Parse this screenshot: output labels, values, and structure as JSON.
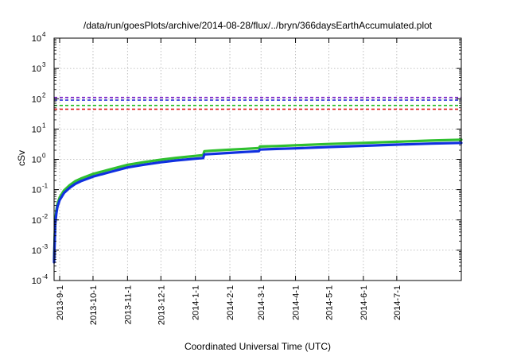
{
  "chart_data": {
    "type": "line",
    "title": "/data/run/goesPlots/archive/2014-08-28/flux/../bryn/366daysEarthAccumulated.plot",
    "xlabel": "Coordinated Universal Time (UTC)",
    "ylabel": "cSv",
    "y_scale": "log",
    "ylim": [
      0.0001,
      10000
    ],
    "xlim": [
      "2013-08-27",
      "2014-08-28"
    ],
    "grid": true,
    "y_ticks": [
      {
        "value": 0.0001,
        "base": "10",
        "exp": "-4"
      },
      {
        "value": 0.001,
        "base": "10",
        "exp": "-3"
      },
      {
        "value": 0.01,
        "base": "10",
        "exp": "-2"
      },
      {
        "value": 0.1,
        "base": "10",
        "exp": "-1"
      },
      {
        "value": 1,
        "base": "10",
        "exp": "0"
      },
      {
        "value": 10,
        "base": "10",
        "exp": "1"
      },
      {
        "value": 100,
        "base": "10",
        "exp": "2"
      },
      {
        "value": 1000,
        "base": "10",
        "exp": "3"
      },
      {
        "value": 10000,
        "base": "10",
        "exp": "4"
      }
    ],
    "x_ticks": [
      {
        "date": "2013-09-01",
        "label": "2013-9-1"
      },
      {
        "date": "2013-10-01",
        "label": "2013-10-1"
      },
      {
        "date": "2013-11-01",
        "label": "2013-11-1"
      },
      {
        "date": "2013-12-01",
        "label": "2013-12-1"
      },
      {
        "date": "2014-01-01",
        "label": "2014-1-1"
      },
      {
        "date": "2014-02-01",
        "label": "2014-2-1"
      },
      {
        "date": "2014-03-01",
        "label": "2014-3-1"
      },
      {
        "date": "2014-04-01",
        "label": "2014-4-1"
      },
      {
        "date": "2014-05-01",
        "label": "2014-5-1"
      },
      {
        "date": "2014-06-01",
        "label": "2014-6-1"
      },
      {
        "date": "2014-07-01",
        "label": "2014-7-1"
      }
    ],
    "reference_lines": [
      {
        "value": 110,
        "color": "#7a20c8"
      },
      {
        "value": 90,
        "color": "#1a1ad6"
      },
      {
        "value": 60,
        "color": "#22bb22"
      },
      {
        "value": 45,
        "color": "#e02020"
      }
    ],
    "series": [
      {
        "color": "#30c030",
        "x": [
          "2013-08-27",
          "2013-08-28",
          "2013-08-29",
          "2013-08-30",
          "2013-09-01",
          "2013-09-05",
          "2013-09-10",
          "2013-09-15",
          "2013-09-20",
          "2013-10-01",
          "2013-10-15",
          "2013-11-01",
          "2013-11-15",
          "2013-12-01",
          "2013-12-15",
          "2014-01-01",
          "2014-01-08",
          "2014-01-09",
          "2014-01-15",
          "2014-02-01",
          "2014-02-15",
          "2014-02-27",
          "2014-02-28",
          "2014-03-15",
          "2014-04-01",
          "2014-05-01",
          "2014-06-01",
          "2014-07-01",
          "2014-08-01",
          "2014-08-28"
        ],
        "values": [
          0.0005,
          0.009,
          0.02,
          0.033,
          0.055,
          0.095,
          0.14,
          0.19,
          0.23,
          0.33,
          0.45,
          0.66,
          0.8,
          0.97,
          1.12,
          1.3,
          1.38,
          1.85,
          1.92,
          2.08,
          2.22,
          2.35,
          2.65,
          2.75,
          2.9,
          3.2,
          3.5,
          3.8,
          4.15,
          4.45
        ]
      },
      {
        "color": "#1030e0",
        "x": [
          "2013-08-27",
          "2013-08-28",
          "2013-08-29",
          "2013-08-30",
          "2013-09-01",
          "2013-09-05",
          "2013-09-10",
          "2013-09-15",
          "2013-09-20",
          "2013-10-01",
          "2013-10-15",
          "2013-11-01",
          "2013-11-15",
          "2013-12-01",
          "2013-12-15",
          "2014-01-01",
          "2014-01-08",
          "2014-01-09",
          "2014-01-15",
          "2014-02-01",
          "2014-02-15",
          "2014-02-27",
          "2014-02-28",
          "2014-03-15",
          "2014-04-01",
          "2014-05-01",
          "2014-06-01",
          "2014-07-01",
          "2014-08-01",
          "2014-08-28"
        ],
        "values": [
          0.0004,
          0.007,
          0.016,
          0.027,
          0.045,
          0.078,
          0.115,
          0.155,
          0.19,
          0.27,
          0.37,
          0.54,
          0.66,
          0.8,
          0.92,
          1.05,
          1.1,
          1.45,
          1.5,
          1.63,
          1.75,
          1.85,
          2.1,
          2.2,
          2.3,
          2.55,
          2.8,
          3.05,
          3.3,
          3.5
        ]
      }
    ]
  }
}
